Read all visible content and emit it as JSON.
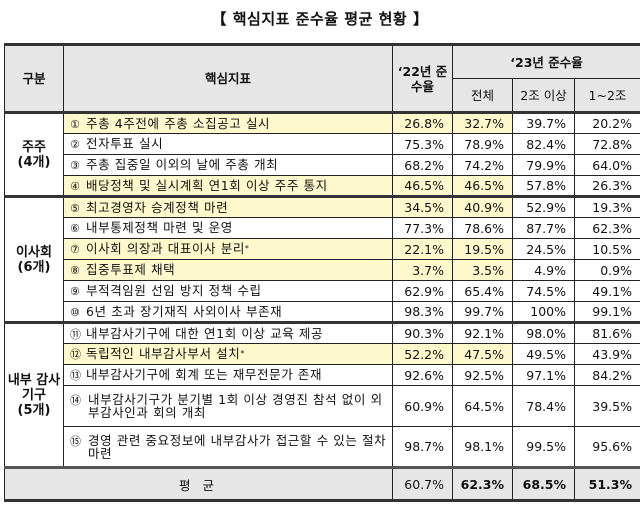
{
  "title": "【 핵심지표 준수율 평균 현황 】",
  "header": {
    "category": "구분",
    "indicator": "핵심지표",
    "y22": "‘22년 준수율",
    "y23": "‘23년 준수율",
    "y23_cols": [
      "전체",
      "2조 이상",
      "1~2조"
    ]
  },
  "groups": [
    {
      "label": "주주",
      "count": "(4개)"
    },
    {
      "label": "이사회",
      "count": "(6개)"
    },
    {
      "label": "내부 감사 기구",
      "count": "(5개)"
    }
  ],
  "rows": [
    {
      "num": "①",
      "text": "주총 4주전에 주총 소집공고 실시",
      "y22": "26.8%",
      "all": "32.7%",
      "over2": "39.7%",
      "b12": "20.2%",
      "highlight": true
    },
    {
      "num": "②",
      "text": "전자투표 실시",
      "y22": "75.3%",
      "all": "78.9%",
      "over2": "82.4%",
      "b12": "72.8%",
      "highlight": false
    },
    {
      "num": "③",
      "text": "주총 집중일 이외의 날에 주총 개최",
      "y22": "68.2%",
      "all": "74.2%",
      "over2": "79.9%",
      "b12": "64.0%",
      "highlight": false
    },
    {
      "num": "④",
      "text": "배당정책 및 실시계획 연1회 이상 주주 통지",
      "y22": "46.5%",
      "all": "46.5%",
      "over2": "57.8%",
      "b12": "26.3%",
      "highlight": true
    },
    {
      "num": "⑤",
      "text": "최고경영자 승계정책 마련",
      "y22": "34.5%",
      "all": "40.9%",
      "over2": "52.9%",
      "b12": "19.3%",
      "highlight": true
    },
    {
      "num": "⑥",
      "text": "내부통제정책 마련 및 운영",
      "y22": "77.3%",
      "all": "78.6%",
      "over2": "87.7%",
      "b12": "62.3%",
      "highlight": false
    },
    {
      "num": "⑦",
      "text": "이사회 의장과 대표이사 분리",
      "sup": "*",
      "y22": "22.1%",
      "all": "19.5%",
      "over2": "24.5%",
      "b12": "10.5%",
      "highlight": true
    },
    {
      "num": "⑧",
      "text": "집중투표제 채택",
      "y22": "3.7%",
      "all": "3.5%",
      "over2": "4.9%",
      "b12": "0.9%",
      "highlight": true
    },
    {
      "num": "⑨",
      "text": "부적격임원 선임 방지 정책 수립",
      "y22": "62.9%",
      "all": "65.4%",
      "over2": "74.5%",
      "b12": "49.1%",
      "highlight": false
    },
    {
      "num": "⑩",
      "text": "6년 초과 장기재직 사외이사 부존재",
      "y22": "98.3%",
      "all": "99.7%",
      "over2": "100%",
      "b12": "99.1%",
      "highlight": false
    },
    {
      "num": "⑪",
      "text": "내부감사기구에 대한 연1회 이상 교육 제공",
      "y22": "90.3%",
      "all": "92.1%",
      "over2": "98.0%",
      "b12": "81.6%",
      "highlight": false
    },
    {
      "num": "⑫",
      "text": "독립적인 내부감사부서 설치",
      "sup": "*",
      "y22": "52.2%",
      "all": "47.5%",
      "over2": "49.5%",
      "b12": "43.9%",
      "highlight": true
    },
    {
      "num": "⑬",
      "text": "내부감사기구에 회계 또는 재무전문가 존재",
      "y22": "92.6%",
      "all": "92.5%",
      "over2": "97.1%",
      "b12": "84.2%",
      "highlight": false
    },
    {
      "num": "⑭",
      "text": "내부감사기구가 분기별 1회 이상 경영진 참석 없이 외부감사인과 회의 개최",
      "y22": "60.9%",
      "all": "64.5%",
      "over2": "78.4%",
      "b12": "39.5%",
      "highlight": false
    },
    {
      "num": "⑮",
      "text": "경영 관련 중요정보에 내부감사가 접근할 수 있는 절차 마련",
      "y22": "98.7%",
      "all": "98.1%",
      "over2": "99.5%",
      "b12": "95.6%",
      "highlight": false
    }
  ],
  "footer": {
    "label": "평 균",
    "y22": "60.7%",
    "all": "62.3%",
    "over2": "68.5%",
    "b12": "51.3%"
  },
  "colors": {
    "highlight": "#fdf9cc",
    "header_bg": "#e6e6e6"
  }
}
